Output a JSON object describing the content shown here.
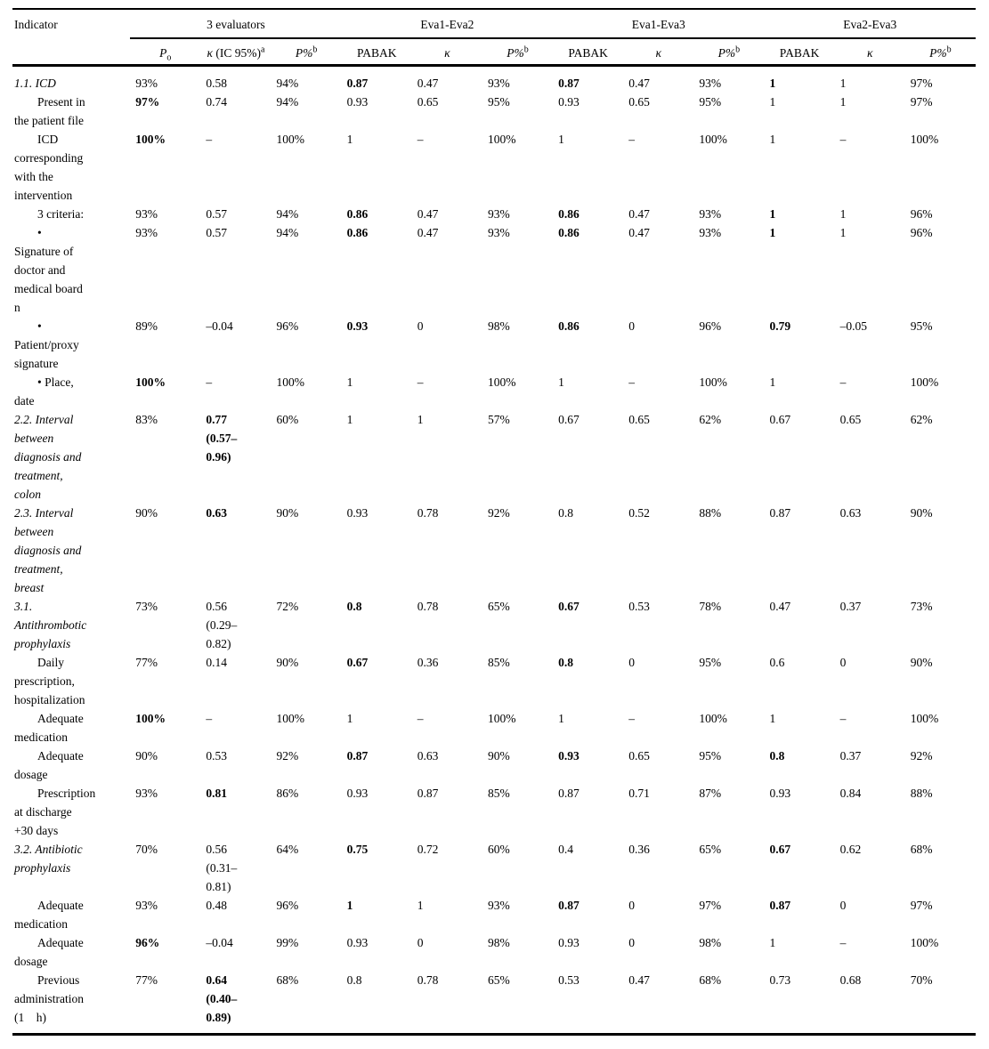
{
  "table": {
    "indicator_header": "Indicator",
    "groups": [
      {
        "label": "3 evaluators"
      },
      {
        "label": "Eva1-Eva2"
      },
      {
        "label": "Eva1-Eva3"
      },
      {
        "label": "Eva2-Eva3"
      }
    ],
    "sub_headers": [
      {
        "italic": "P",
        "sub": "o"
      },
      {
        "italic": "κ",
        "text": " (IC 95%)",
        "sup": "a"
      },
      {
        "italic": "P%",
        "sup": "b"
      },
      {
        "text": "PABAK"
      },
      {
        "italic": "κ"
      },
      {
        "italic": "P%",
        "sup": "b"
      },
      {
        "text": "PABAK"
      },
      {
        "italic": "κ"
      },
      {
        "italic": "P%",
        "sup": "b"
      },
      {
        "text": "PABAK"
      },
      {
        "italic": "κ"
      },
      {
        "italic": "P%",
        "sup": "b"
      }
    ],
    "rows": [
      {
        "label": "1.1. ICD",
        "section": true,
        "indent": false,
        "cells": [
          {
            "v": "93%"
          },
          {
            "v": "0.58"
          },
          {
            "v": "94%"
          },
          {
            "v": "0.87",
            "b": true
          },
          {
            "v": "0.47"
          },
          {
            "v": "93%"
          },
          {
            "v": "0.87",
            "b": true
          },
          {
            "v": "0.47"
          },
          {
            "v": "93%"
          },
          {
            "v": "1",
            "b": true
          },
          {
            "v": "1"
          },
          {
            "v": "97%"
          }
        ]
      },
      {
        "label": "Present in\nthe patient file",
        "section": false,
        "indent": true,
        "cells": [
          {
            "v": "97%",
            "b": true
          },
          {
            "v": "0.74"
          },
          {
            "v": "94%"
          },
          {
            "v": "0.93"
          },
          {
            "v": "0.65"
          },
          {
            "v": "95%"
          },
          {
            "v": "0.93"
          },
          {
            "v": "0.65"
          },
          {
            "v": "95%"
          },
          {
            "v": "1"
          },
          {
            "v": "1"
          },
          {
            "v": "97%"
          }
        ]
      },
      {
        "label": "ICD\ncorresponding\nwith the\nintervention",
        "section": false,
        "indent": true,
        "cells": [
          {
            "v": "100%",
            "b": true
          },
          {
            "v": "–"
          },
          {
            "v": "100%"
          },
          {
            "v": "1"
          },
          {
            "v": "–"
          },
          {
            "v": "100%"
          },
          {
            "v": "1"
          },
          {
            "v": "–"
          },
          {
            "v": "100%"
          },
          {
            "v": "1"
          },
          {
            "v": "–"
          },
          {
            "v": "100%"
          }
        ]
      },
      {
        "label": "3 criteria:",
        "section": false,
        "indent": true,
        "cells": [
          {
            "v": "93%"
          },
          {
            "v": "0.57"
          },
          {
            "v": "94%"
          },
          {
            "v": "0.86",
            "b": true
          },
          {
            "v": "0.47"
          },
          {
            "v": "93%"
          },
          {
            "v": "0.86",
            "b": true
          },
          {
            "v": "0.47"
          },
          {
            "v": "93%"
          },
          {
            "v": "1",
            "b": true
          },
          {
            "v": "1"
          },
          {
            "v": "96%"
          }
        ]
      },
      {
        "label": "•\nSignature of\ndoctor and\nmedical board\nn",
        "section": false,
        "indent": true,
        "cells": [
          {
            "v": "93%"
          },
          {
            "v": "0.57"
          },
          {
            "v": "94%"
          },
          {
            "v": "0.86",
            "b": true
          },
          {
            "v": "0.47"
          },
          {
            "v": "93%"
          },
          {
            "v": "0.86",
            "b": true
          },
          {
            "v": "0.47"
          },
          {
            "v": "93%"
          },
          {
            "v": "1",
            "b": true
          },
          {
            "v": "1"
          },
          {
            "v": "96%"
          }
        ]
      },
      {
        "label": "•\nPatient/proxy\nsignature",
        "section": false,
        "indent": true,
        "cells": [
          {
            "v": "89%"
          },
          {
            "v": "–0.04"
          },
          {
            "v": "96%"
          },
          {
            "v": "0.93",
            "b": true
          },
          {
            "v": "0"
          },
          {
            "v": "98%"
          },
          {
            "v": "0.86",
            "b": true
          },
          {
            "v": "0"
          },
          {
            "v": "96%"
          },
          {
            "v": "0.79",
            "b": true
          },
          {
            "v": "–0.05"
          },
          {
            "v": "95%"
          }
        ]
      },
      {
        "label": "• Place,\ndate",
        "section": false,
        "indent": true,
        "cells": [
          {
            "v": "100%",
            "b": true
          },
          {
            "v": "–"
          },
          {
            "v": "100%"
          },
          {
            "v": "1"
          },
          {
            "v": "–"
          },
          {
            "v": "100%"
          },
          {
            "v": "1"
          },
          {
            "v": "–"
          },
          {
            "v": "100%"
          },
          {
            "v": "1"
          },
          {
            "v": "–"
          },
          {
            "v": "100%"
          }
        ]
      },
      {
        "label": "2.2. Interval\nbetween\ndiagnosis and\ntreatment,\ncolon",
        "section": true,
        "indent": false,
        "cells": [
          {
            "v": "83%"
          },
          {
            "v": "0.77\n(0.57–\n0.96)",
            "b": true
          },
          {
            "v": "60%"
          },
          {
            "v": "1"
          },
          {
            "v": "1"
          },
          {
            "v": "57%"
          },
          {
            "v": "0.67"
          },
          {
            "v": "0.65"
          },
          {
            "v": "62%"
          },
          {
            "v": "0.67"
          },
          {
            "v": "0.65"
          },
          {
            "v": "62%"
          }
        ]
      },
      {
        "label": "2.3. Interval\nbetween\ndiagnosis and\ntreatment,\nbreast",
        "section": true,
        "indent": false,
        "cells": [
          {
            "v": "90%"
          },
          {
            "v": "0.63",
            "b": true
          },
          {
            "v": "90%"
          },
          {
            "v": "0.93"
          },
          {
            "v": "0.78"
          },
          {
            "v": "92%"
          },
          {
            "v": "0.8"
          },
          {
            "v": "0.52"
          },
          {
            "v": "88%"
          },
          {
            "v": "0.87"
          },
          {
            "v": "0.63"
          },
          {
            "v": "90%"
          }
        ]
      },
      {
        "label": "3.1.\nAntithrombotic\nprophylaxis",
        "section": true,
        "indent": false,
        "cells": [
          {
            "v": "73%"
          },
          {
            "v": "0.56\n(0.29–\n0.82)"
          },
          {
            "v": "72%"
          },
          {
            "v": "0.8",
            "b": true
          },
          {
            "v": "0.78"
          },
          {
            "v": "65%"
          },
          {
            "v": "0.67",
            "b": true
          },
          {
            "v": "0.53"
          },
          {
            "v": "78%"
          },
          {
            "v": "0.47"
          },
          {
            "v": "0.37"
          },
          {
            "v": "73%"
          }
        ]
      },
      {
        "label": "Daily\nprescription,\nhospitalization",
        "section": false,
        "indent": true,
        "cells": [
          {
            "v": "77%"
          },
          {
            "v": "0.14"
          },
          {
            "v": "90%"
          },
          {
            "v": "0.67",
            "b": true
          },
          {
            "v": "0.36"
          },
          {
            "v": "85%"
          },
          {
            "v": "0.8",
            "b": true
          },
          {
            "v": "0"
          },
          {
            "v": "95%"
          },
          {
            "v": "0.6"
          },
          {
            "v": "0"
          },
          {
            "v": "90%"
          }
        ]
      },
      {
        "label": "Adequate\nmedication",
        "section": false,
        "indent": true,
        "cells": [
          {
            "v": "100%",
            "b": true
          },
          {
            "v": "–"
          },
          {
            "v": "100%"
          },
          {
            "v": "1"
          },
          {
            "v": "–"
          },
          {
            "v": "100%"
          },
          {
            "v": "1"
          },
          {
            "v": "–"
          },
          {
            "v": "100%"
          },
          {
            "v": "1"
          },
          {
            "v": "–"
          },
          {
            "v": "100%"
          }
        ]
      },
      {
        "label": "Adequate\ndosage",
        "section": false,
        "indent": true,
        "cells": [
          {
            "v": "90%"
          },
          {
            "v": "0.53"
          },
          {
            "v": "92%"
          },
          {
            "v": "0.87",
            "b": true
          },
          {
            "v": "0.63"
          },
          {
            "v": "90%"
          },
          {
            "v": "0.93",
            "b": true
          },
          {
            "v": "0.65"
          },
          {
            "v": "95%"
          },
          {
            "v": "0.8",
            "b": true
          },
          {
            "v": "0.37"
          },
          {
            "v": "92%"
          }
        ]
      },
      {
        "label": "Prescription\nat discharge\n+30 days",
        "section": false,
        "indent": true,
        "cells": [
          {
            "v": "93%"
          },
          {
            "v": "0.81",
            "b": true
          },
          {
            "v": "86%"
          },
          {
            "v": "0.93"
          },
          {
            "v": "0.87"
          },
          {
            "v": "85%"
          },
          {
            "v": "0.87"
          },
          {
            "v": "0.71"
          },
          {
            "v": "87%"
          },
          {
            "v": "0.93"
          },
          {
            "v": "0.84"
          },
          {
            "v": "88%"
          }
        ]
      },
      {
        "label": "3.2. Antibiotic\nprophylaxis",
        "section": true,
        "indent": false,
        "cells": [
          {
            "v": "70%"
          },
          {
            "v": "0.56\n(0.31–\n0.81)"
          },
          {
            "v": "64%"
          },
          {
            "v": "0.75",
            "b": true
          },
          {
            "v": "0.72"
          },
          {
            "v": "60%"
          },
          {
            "v": "0.4"
          },
          {
            "v": "0.36"
          },
          {
            "v": "65%"
          },
          {
            "v": "0.67",
            "b": true
          },
          {
            "v": "0.62"
          },
          {
            "v": "68%"
          }
        ]
      },
      {
        "label": "Adequate\nmedication",
        "section": false,
        "indent": true,
        "cells": [
          {
            "v": "93%"
          },
          {
            "v": "0.48"
          },
          {
            "v": "96%"
          },
          {
            "v": "1",
            "b": true
          },
          {
            "v": "1"
          },
          {
            "v": "93%"
          },
          {
            "v": "0.87",
            "b": true
          },
          {
            "v": "0"
          },
          {
            "v": "97%"
          },
          {
            "v": "0.87",
            "b": true
          },
          {
            "v": "0"
          },
          {
            "v": "97%"
          }
        ]
      },
      {
        "label": "Adequate\ndosage",
        "section": false,
        "indent": true,
        "cells": [
          {
            "v": "96%",
            "b": true
          },
          {
            "v": "–0.04"
          },
          {
            "v": "99%"
          },
          {
            "v": "0.93"
          },
          {
            "v": "0"
          },
          {
            "v": "98%"
          },
          {
            "v": "0.93"
          },
          {
            "v": "0"
          },
          {
            "v": "98%"
          },
          {
            "v": "1"
          },
          {
            "v": "–"
          },
          {
            "v": "100%"
          }
        ]
      },
      {
        "label": "Previous\nadministration\n(1 h)",
        "section": false,
        "indent": true,
        "cells": [
          {
            "v": "77%"
          },
          {
            "v": "0.64\n(0.40–\n0.89)",
            "b": true
          },
          {
            "v": "68%"
          },
          {
            "v": "0.8"
          },
          {
            "v": "0.78"
          },
          {
            "v": "65%"
          },
          {
            "v": "0.53"
          },
          {
            "v": "0.47"
          },
          {
            "v": "68%"
          },
          {
            "v": "0.73"
          },
          {
            "v": "0.68"
          },
          {
            "v": "70%"
          }
        ]
      }
    ]
  },
  "colors": {
    "text": "#000000",
    "background": "#ffffff",
    "rule": "#000000"
  }
}
